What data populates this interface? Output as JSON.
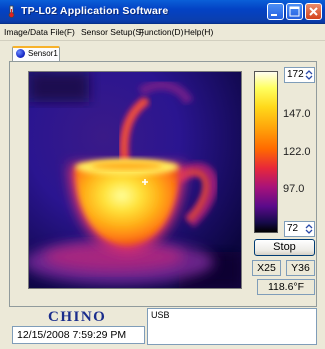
{
  "window": {
    "title": "TP-L02 Application Software",
    "icon": "thermometer-app-icon",
    "controls": [
      "minimize-icon",
      "maximize-icon",
      "close-icon"
    ]
  },
  "menu": [
    {
      "label": "Image/Data File(F)"
    },
    {
      "label": "Sensor Setup(S)"
    },
    {
      "label": "Function(D)"
    },
    {
      "label": "Help(H)"
    }
  ],
  "tabs": [
    {
      "label": "Sensor1",
      "icon": "sensor-dot-icon",
      "selected": true
    }
  ],
  "scale": {
    "max_value": "172",
    "min_value": "72",
    "ticks": [
      "147.0",
      "122.0",
      "97.0"
    ]
  },
  "controls": {
    "stop_label": "Stop"
  },
  "readout": {
    "x": "X25",
    "y": "Y36",
    "temperature": "118.6°F"
  },
  "footer": {
    "logo": "CHINO",
    "datetime": "12/15/2008 7:59:29 PM",
    "status": "USB"
  }
}
